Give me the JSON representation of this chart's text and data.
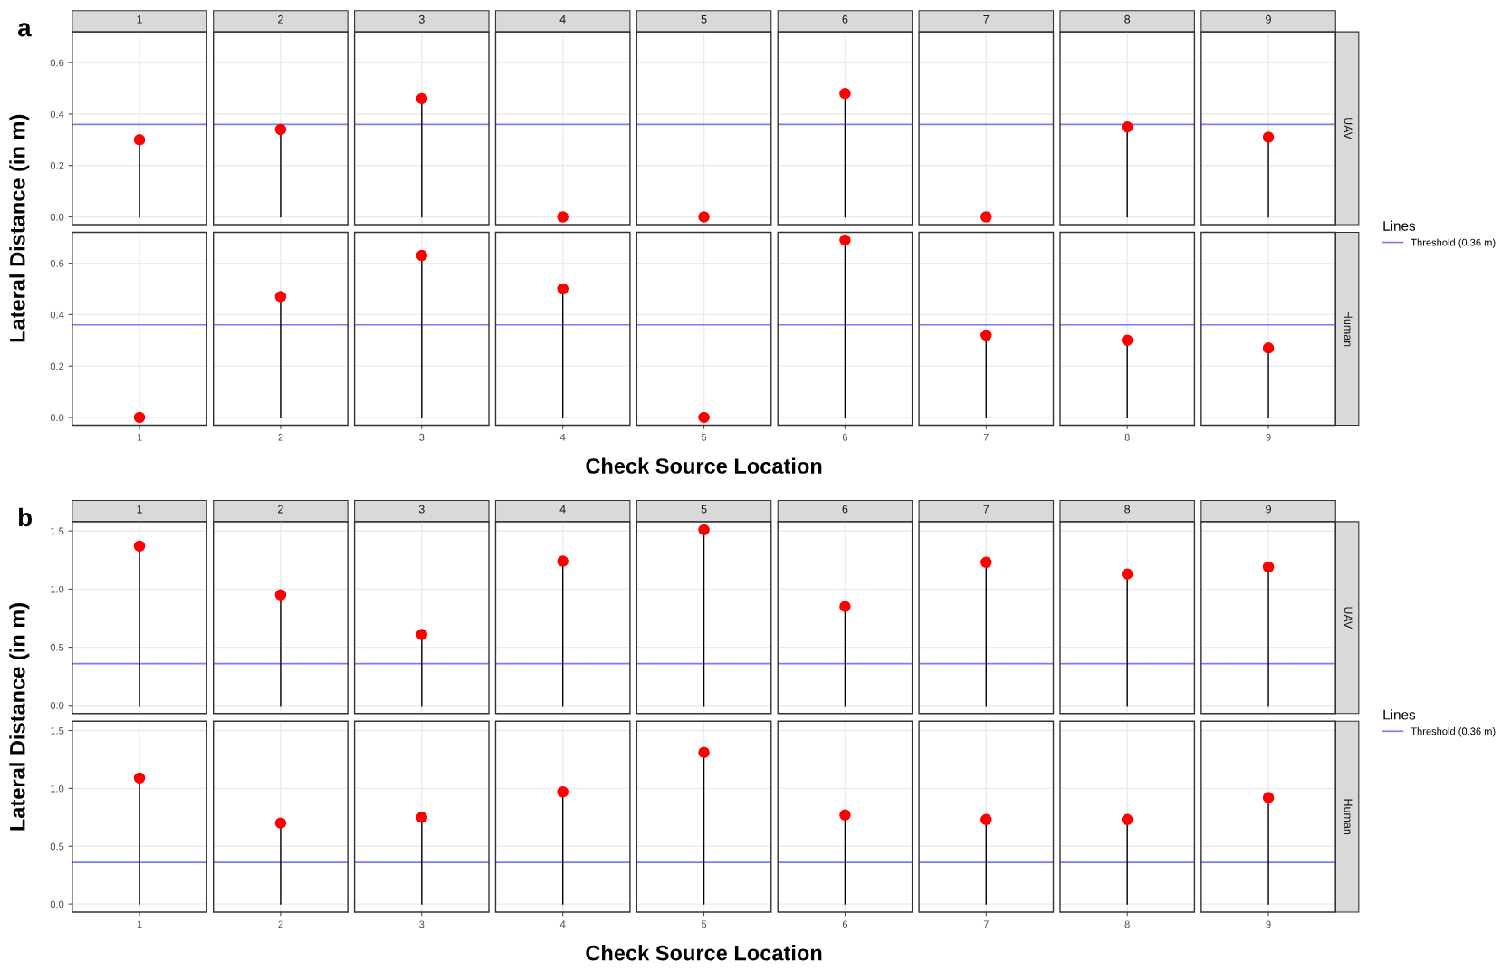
{
  "chart_data": [
    {
      "type": "lollipop",
      "ylabel": "Lateral Distance (in m)",
      "annotations": [
        "a",
        "UAV"
      ],
      "legend": "right",
      "legend_title": "Lines",
      "categories": [
        "1",
        "2",
        "3",
        "4",
        "5",
        "6",
        "7",
        "8",
        "9"
      ],
      "values": [
        0.3,
        0.34,
        0.46,
        0.0,
        0.0,
        0.48,
        0.0,
        0.35,
        0.31
      ],
      "color": "#ff0000",
      "ylim": [
        -0.03,
        0.72
      ],
      "yticks": [
        {
          "value": 0,
          "label": "0.0"
        },
        {
          "value": 0.2,
          "label": "0.2"
        },
        {
          "value": 0.4,
          "label": "0.4"
        },
        {
          "value": 0.6,
          "label": "0.6"
        }
      ],
      "ref_lines": [
        {
          "axis": "y",
          "value": 0.36,
          "color": "#7b7bff",
          "label": "Threshold (0.36 m)"
        }
      ],
      "grid": true,
      "marker": "circle"
    },
    {
      "type": "lollipop",
      "xlabel": "Check Source Location",
      "annotations": [
        "Human"
      ],
      "categories": [
        "1",
        "2",
        "3",
        "4",
        "5",
        "6",
        "7",
        "8",
        "9"
      ],
      "values": [
        0.0,
        0.47,
        0.63,
        0.5,
        0.0,
        0.69,
        0.32,
        0.3,
        0.27
      ],
      "color": "#ff0000",
      "ylim": [
        -0.03,
        0.72
      ],
      "yticks": [
        {
          "value": 0,
          "label": "0.0"
        },
        {
          "value": 0.2,
          "label": "0.2"
        },
        {
          "value": 0.4,
          "label": "0.4"
        },
        {
          "value": 0.6,
          "label": "0.6"
        }
      ],
      "ref_lines": [
        {
          "axis": "y",
          "value": 0.36,
          "color": "#7b7bff"
        }
      ],
      "grid": true,
      "marker": "circle"
    },
    {
      "type": "lollipop",
      "ylabel": "Lateral Distance (in m)",
      "annotations": [
        "b",
        "UAV"
      ],
      "legend": "right",
      "legend_title": "Lines",
      "categories": [
        "1",
        "2",
        "3",
        "4",
        "5",
        "6",
        "7",
        "8",
        "9"
      ],
      "values": [
        1.37,
        0.95,
        0.61,
        1.24,
        1.51,
        0.85,
        1.23,
        1.13,
        1.19
      ],
      "color": "#ff0000",
      "ylim": [
        -0.07,
        1.58
      ],
      "yticks": [
        {
          "value": 0,
          "label": "0.0"
        },
        {
          "value": 0.5,
          "label": "0.5"
        },
        {
          "value": 1,
          "label": "1.0"
        },
        {
          "value": 1.5,
          "label": "1.5"
        }
      ],
      "ref_lines": [
        {
          "axis": "y",
          "value": 0.36,
          "color": "#7b7bff",
          "label": "Threshold (0.36 m)"
        }
      ],
      "grid": true,
      "marker": "circle"
    },
    {
      "type": "lollipop",
      "xlabel": "Check Source Location",
      "annotations": [
        "Human"
      ],
      "categories": [
        "1",
        "2",
        "3",
        "4",
        "5",
        "6",
        "7",
        "8",
        "9"
      ],
      "values": [
        1.09,
        0.7,
        0.75,
        0.97,
        1.31,
        0.77,
        0.73,
        0.73,
        0.92
      ],
      "color": "#ff0000",
      "ylim": [
        -0.07,
        1.58
      ],
      "yticks": [
        {
          "value": 0,
          "label": "0.0"
        },
        {
          "value": 0.5,
          "label": "0.5"
        },
        {
          "value": 1,
          "label": "1.0"
        },
        {
          "value": 1.5,
          "label": "1.5"
        }
      ],
      "ref_lines": [
        {
          "axis": "y",
          "value": 0.36,
          "color": "#7b7bff"
        }
      ],
      "grid": true,
      "marker": "circle"
    }
  ]
}
